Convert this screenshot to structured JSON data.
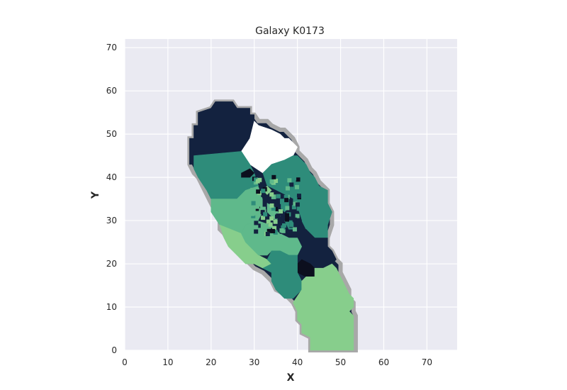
{
  "chart_data": {
    "type": "heatmap",
    "title": "Galaxy K0173",
    "xlabel": "X",
    "ylabel": "Y",
    "xlim": [
      0,
      77
    ],
    "ylim": [
      0,
      72
    ],
    "xticks": [
      0,
      10,
      20,
      30,
      40,
      50,
      60,
      70
    ],
    "yticks": [
      0,
      10,
      20,
      30,
      40,
      50,
      60,
      70
    ],
    "grid": true,
    "background_color": "#EAEAF2",
    "grid_color": "#FFFFFF",
    "outline_color": "#A8A8A8",
    "regions": [
      {
        "value": "navy",
        "color": "#13223F",
        "polygon": [
          [
            21,
            57.5
          ],
          [
            25,
            57.5
          ],
          [
            26,
            56
          ],
          [
            29,
            56
          ],
          [
            29,
            54.5
          ],
          [
            30,
            54.5
          ],
          [
            30,
            52
          ],
          [
            29,
            50
          ],
          [
            27,
            47
          ],
          [
            26,
            46
          ],
          [
            16,
            46
          ],
          [
            16,
            43
          ],
          [
            15,
            43
          ],
          [
            15,
            49
          ],
          [
            16,
            49
          ],
          [
            16,
            52
          ],
          [
            17,
            52
          ],
          [
            17,
            55
          ],
          [
            20,
            56
          ]
        ]
      },
      {
        "value": "white",
        "color": "#FFFFFF",
        "polygon": [
          [
            30,
            53
          ],
          [
            31,
            52
          ],
          [
            34,
            51
          ],
          [
            36,
            50
          ],
          [
            37,
            49
          ],
          [
            38,
            49
          ],
          [
            39,
            48
          ],
          [
            40,
            47
          ],
          [
            39,
            45
          ],
          [
            37,
            44
          ],
          [
            34,
            43
          ],
          [
            32,
            41
          ],
          [
            29,
            43
          ],
          [
            27,
            46
          ],
          [
            29,
            49
          ]
        ]
      },
      {
        "value": "teal",
        "color": "#2E8C7A",
        "polygon": [
          [
            16,
            45
          ],
          [
            27,
            46
          ],
          [
            29,
            43
          ],
          [
            30,
            41
          ],
          [
            31,
            38
          ],
          [
            28,
            37
          ],
          [
            26,
            35
          ],
          [
            20,
            35
          ],
          [
            19,
            37
          ],
          [
            17,
            40
          ],
          [
            16,
            42
          ]
        ]
      },
      {
        "value": "teal",
        "color": "#2E8C7A",
        "polygon": [
          [
            32,
            41
          ],
          [
            34,
            43
          ],
          [
            37,
            44
          ],
          [
            39,
            45
          ],
          [
            40,
            45
          ],
          [
            41,
            44
          ],
          [
            42,
            43
          ],
          [
            43,
            41
          ],
          [
            44,
            40
          ],
          [
            45,
            38
          ],
          [
            47,
            37
          ],
          [
            47,
            34
          ],
          [
            48,
            32
          ],
          [
            47,
            29
          ],
          [
            47,
            26
          ],
          [
            44,
            26
          ],
          [
            42,
            28
          ],
          [
            41,
            30
          ],
          [
            40,
            33
          ],
          [
            39,
            35
          ],
          [
            37,
            36
          ],
          [
            35,
            37
          ],
          [
            33,
            38
          ]
        ]
      },
      {
        "value": "mid-green",
        "color": "#5FB98B",
        "polygon": [
          [
            20,
            35
          ],
          [
            26,
            35
          ],
          [
            28,
            37
          ],
          [
            31,
            38
          ],
          [
            32,
            35
          ],
          [
            32,
            32
          ],
          [
            31,
            30
          ],
          [
            28,
            29
          ],
          [
            27,
            27
          ],
          [
            22,
            29
          ],
          [
            20,
            32
          ]
        ]
      },
      {
        "value": "navy",
        "color": "#13223F",
        "polygon": [
          [
            42,
            28
          ],
          [
            44,
            26
          ],
          [
            47,
            26
          ],
          [
            47,
            24
          ],
          [
            48,
            23
          ],
          [
            49,
            21
          ],
          [
            48,
            20
          ],
          [
            46,
            19
          ],
          [
            44,
            19
          ],
          [
            43,
            20
          ],
          [
            41,
            21
          ],
          [
            40,
            22
          ],
          [
            41,
            24
          ],
          [
            40,
            26
          ]
        ]
      },
      {
        "value": "black",
        "color": "#0C0F1E",
        "polygon": [
          [
            41,
            21
          ],
          [
            43,
            20
          ],
          [
            44,
            19
          ],
          [
            44,
            17
          ],
          [
            42,
            17
          ],
          [
            40,
            18
          ],
          [
            40,
            20
          ]
        ]
      },
      {
        "value": "light-green",
        "color": "#87CE8C",
        "polygon": [
          [
            22,
            29
          ],
          [
            27,
            27
          ],
          [
            28,
            25
          ],
          [
            31,
            22
          ],
          [
            33,
            21
          ],
          [
            34,
            20
          ],
          [
            32,
            19
          ],
          [
            30,
            20
          ],
          [
            28,
            20
          ],
          [
            26,
            22
          ],
          [
            24,
            24
          ],
          [
            23,
            26
          ]
        ]
      },
      {
        "value": "mid-green",
        "color": "#5FB98B",
        "polygon": [
          [
            27,
            27
          ],
          [
            28,
            29
          ],
          [
            31,
            30
          ],
          [
            34,
            29
          ],
          [
            36,
            27
          ],
          [
            38,
            26
          ],
          [
            40,
            26
          ],
          [
            41,
            24
          ],
          [
            40,
            22
          ],
          [
            38,
            22
          ],
          [
            36,
            23
          ],
          [
            34,
            23
          ],
          [
            33,
            22
          ],
          [
            31,
            22
          ],
          [
            28,
            25
          ]
        ]
      },
      {
        "value": "teal",
        "color": "#2E8C7A",
        "polygon": [
          [
            33,
            21
          ],
          [
            34,
            23
          ],
          [
            36,
            23
          ],
          [
            38,
            22
          ],
          [
            40,
            22
          ],
          [
            40,
            18
          ],
          [
            41,
            16
          ],
          [
            41,
            14
          ],
          [
            39,
            12
          ],
          [
            37,
            12
          ],
          [
            35,
            14
          ],
          [
            34,
            16
          ],
          [
            34,
            18
          ],
          [
            32,
            19
          ],
          [
            34,
            20
          ]
        ]
      },
      {
        "value": "light-green",
        "color": "#87CE8C",
        "polygon": [
          [
            41,
            16
          ],
          [
            42,
            17
          ],
          [
            44,
            17
          ],
          [
            44,
            19
          ],
          [
            46,
            19
          ],
          [
            48,
            20
          ],
          [
            49,
            19
          ],
          [
            50,
            17
          ],
          [
            51,
            15
          ],
          [
            52,
            13
          ],
          [
            53,
            12
          ],
          [
            53,
            10
          ],
          [
            52,
            9
          ],
          [
            53,
            8
          ],
          [
            53,
            0
          ],
          [
            43,
            0
          ],
          [
            43,
            3
          ],
          [
            41,
            4
          ],
          [
            41,
            6
          ],
          [
            40,
            7
          ],
          [
            40,
            9
          ],
          [
            39,
            11
          ],
          [
            41,
            14
          ]
        ]
      },
      {
        "value": "navy",
        "color": "#13223F",
        "polygon": [
          [
            31,
            38
          ],
          [
            33,
            38
          ],
          [
            35,
            37
          ],
          [
            37,
            36
          ],
          [
            39,
            35
          ],
          [
            40,
            33
          ],
          [
            41,
            30
          ],
          [
            40,
            28
          ],
          [
            38,
            27
          ],
          [
            36,
            27
          ],
          [
            34,
            29
          ],
          [
            31,
            30
          ],
          [
            32,
            32
          ],
          [
            32,
            35
          ]
        ]
      },
      {
        "value": "black",
        "color": "#0C0F1E",
        "polygon": [
          [
            27,
            40
          ],
          [
            29,
            40
          ],
          [
            30,
            41
          ],
          [
            29,
            42
          ],
          [
            27,
            41
          ]
        ]
      },
      {
        "value": "mid-green",
        "color": "#5FB98B",
        "polygon": [
          [
            33,
            34
          ],
          [
            35,
            33
          ],
          [
            36,
            31
          ],
          [
            35,
            30
          ],
          [
            34,
            31
          ],
          [
            33,
            32
          ]
        ]
      },
      {
        "value": "teal",
        "color": "#2E8C7A",
        "polygon": [
          [
            36,
            35
          ],
          [
            38,
            35
          ],
          [
            38,
            33
          ],
          [
            37,
            32
          ],
          [
            36,
            33
          ]
        ]
      },
      {
        "value": "light-green",
        "color": "#87CE8C",
        "polygon": [
          [
            32,
            37
          ],
          [
            33,
            36
          ],
          [
            34,
            37
          ],
          [
            33,
            38
          ]
        ]
      },
      {
        "value": "teal",
        "color": "#2E8C7A",
        "polygon": [
          [
            37,
            30
          ],
          [
            39,
            30
          ],
          [
            39,
            28
          ],
          [
            38,
            28
          ]
        ]
      },
      {
        "value": "mid-green",
        "color": "#5FB98B",
        "polygon": [
          [
            34,
            36
          ],
          [
            35,
            36
          ],
          [
            35,
            35
          ],
          [
            34,
            35
          ]
        ]
      }
    ],
    "outline_polygon": [
      [
        21,
        57.5
      ],
      [
        25,
        57.5
      ],
      [
        26,
        56
      ],
      [
        29,
        56
      ],
      [
        29,
        54.5
      ],
      [
        30,
        54.5
      ],
      [
        31,
        53
      ],
      [
        33,
        53
      ],
      [
        34,
        52
      ],
      [
        36,
        51
      ],
      [
        37,
        51
      ],
      [
        38,
        50
      ],
      [
        39,
        49
      ],
      [
        40,
        47
      ],
      [
        40,
        46
      ],
      [
        41,
        45
      ],
      [
        42,
        44
      ],
      [
        43,
        42
      ],
      [
        44,
        41
      ],
      [
        45,
        39
      ],
      [
        46,
        38
      ],
      [
        47,
        37
      ],
      [
        47,
        34
      ],
      [
        48,
        32
      ],
      [
        48,
        29
      ],
      [
        47,
        26
      ],
      [
        47,
        24
      ],
      [
        48,
        23
      ],
      [
        49,
        21
      ],
      [
        50,
        20
      ],
      [
        50,
        18
      ],
      [
        51,
        16
      ],
      [
        52,
        14
      ],
      [
        52,
        12
      ],
      [
        53,
        11
      ],
      [
        53,
        9
      ],
      [
        53.5,
        8
      ],
      [
        53.5,
        0
      ],
      [
        43,
        0
      ],
      [
        43,
        3
      ],
      [
        41,
        4
      ],
      [
        41,
        6
      ],
      [
        40,
        7
      ],
      [
        40,
        9
      ],
      [
        39,
        11
      ],
      [
        38,
        12
      ],
      [
        37,
        13
      ],
      [
        35,
        14
      ],
      [
        34,
        16
      ],
      [
        33,
        17
      ],
      [
        32,
        18
      ],
      [
        30,
        19
      ],
      [
        29,
        20
      ],
      [
        28,
        21
      ],
      [
        27,
        22
      ],
      [
        26,
        23
      ],
      [
        25,
        24
      ],
      [
        24,
        25
      ],
      [
        23,
        27
      ],
      [
        22,
        28
      ],
      [
        22,
        30
      ],
      [
        21,
        32
      ],
      [
        20,
        34
      ],
      [
        19,
        36
      ],
      [
        18,
        38
      ],
      [
        17,
        40
      ],
      [
        16,
        41
      ],
      [
        15,
        43
      ],
      [
        15,
        49
      ],
      [
        16,
        49
      ],
      [
        16,
        52
      ],
      [
        17,
        52
      ],
      [
        17,
        55
      ],
      [
        20,
        56
      ]
    ]
  }
}
